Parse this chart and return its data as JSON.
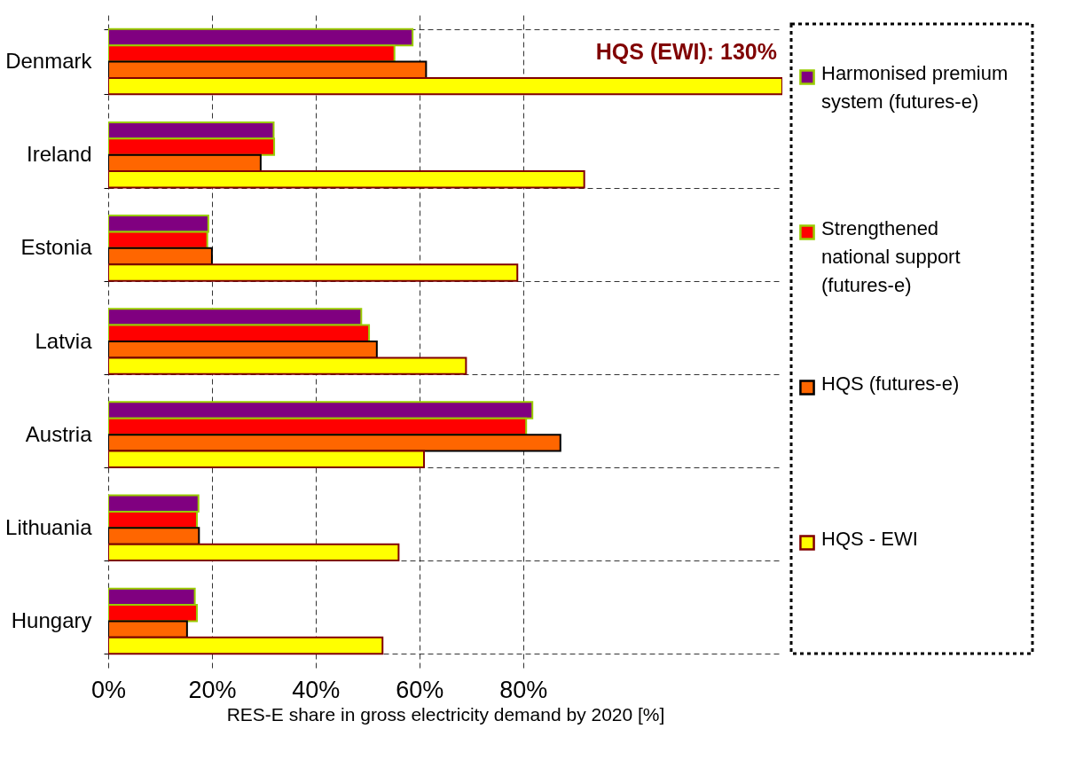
{
  "chart_data": {
    "type": "bar",
    "orientation": "horizontal",
    "xlabel": "RES-E share in gross electricity demand by 2020 [%]",
    "categories": [
      "Denmark",
      "Ireland",
      "Estonia",
      "Latvia",
      "Austria",
      "Lithuania",
      "Hungary"
    ],
    "series": [
      {
        "name": "Harmonised premium system (futures-e)",
        "color": "#800080",
        "values": [
          58.7,
          31.9,
          19.3,
          48.8,
          81.8,
          17.4,
          16.7
        ]
      },
      {
        "name": "Strengthened national support (futures-e)",
        "color": "#ff0000",
        "values": [
          55.2,
          32.0,
          19.1,
          50.3,
          80.6,
          17.1,
          17.1
        ]
      },
      {
        "name": "HQS (futures-e)",
        "color": "#ff6600",
        "values": [
          61.3,
          29.4,
          20.0,
          51.8,
          87.2,
          17.5,
          15.2
        ]
      },
      {
        "name": "HQS - EWI",
        "color": "#ffff00",
        "values": [
          130,
          91.8,
          78.9,
          69.0,
          60.9,
          56.0,
          52.9
        ]
      }
    ],
    "xlim": [
      0,
      130
    ],
    "xticks": [
      {
        "value": 0,
        "label": "0%"
      },
      {
        "value": 20,
        "label": "20%"
      },
      {
        "value": 40,
        "label": "40%"
      },
      {
        "value": 60,
        "label": "60%"
      },
      {
        "value": 80,
        "label": "80%"
      }
    ],
    "grid": true,
    "legend": "right",
    "annotations": [
      "HQS (EWI): 130%"
    ]
  }
}
